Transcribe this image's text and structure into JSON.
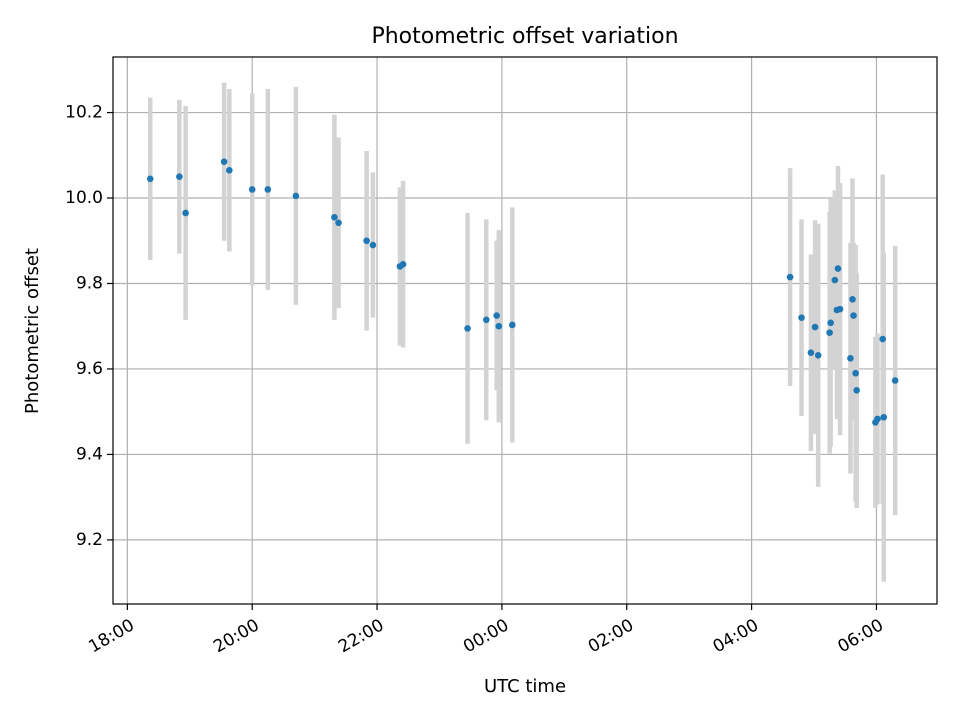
{
  "chart_data": {
    "type": "scatter",
    "title": "Photometric offset variation",
    "xlabel": "UTC time",
    "ylabel": "Photometric offset",
    "x_axis": {
      "kind": "time",
      "range_hours": [
        17.77,
        30.97
      ],
      "ticks": [
        {
          "hour": 18,
          "label": "18:00"
        },
        {
          "hour": 20,
          "label": "20:00"
        },
        {
          "hour": 22,
          "label": "22:00"
        },
        {
          "hour": 24,
          "label": "00:00"
        },
        {
          "hour": 26,
          "label": "02:00"
        },
        {
          "hour": 28,
          "label": "04:00"
        },
        {
          "hour": 30,
          "label": "06:00"
        }
      ]
    },
    "y_axis": {
      "range": [
        9.05,
        10.33
      ],
      "ticks": [
        {
          "value": 9.2,
          "label": "9.2"
        },
        {
          "value": 9.4,
          "label": "9.4"
        },
        {
          "value": 9.6,
          "label": "9.6"
        },
        {
          "value": 9.8,
          "label": "9.8"
        },
        {
          "value": 10.0,
          "label": "10.0"
        },
        {
          "value": 10.2,
          "label": "10.2"
        }
      ]
    },
    "grid": true,
    "colors": {
      "point": "#1f77b4",
      "errorbar": "#d3d3d3"
    },
    "series": [
      {
        "points": [
          {
            "time": "18:22",
            "y": 10.045,
            "err": 0.19
          },
          {
            "time": "18:50",
            "y": 10.05,
            "err": 0.18
          },
          {
            "time": "18:56",
            "y": 9.965,
            "err": 0.25
          },
          {
            "time": "19:33",
            "y": 10.085,
            "err": 0.185
          },
          {
            "time": "19:38",
            "y": 10.065,
            "err": 0.19
          },
          {
            "time": "20:00",
            "y": 10.02,
            "err": 0.225
          },
          {
            "time": "20:15",
            "y": 10.02,
            "err": 0.235
          },
          {
            "time": "20:42",
            "y": 10.005,
            "err": 0.255
          },
          {
            "time": "21:19",
            "y": 9.955,
            "err": 0.24
          },
          {
            "time": "21:23",
            "y": 9.942,
            "err": 0.2
          },
          {
            "time": "21:50",
            "y": 9.9,
            "err": 0.21
          },
          {
            "time": "21:56",
            "y": 9.89,
            "err": 0.17
          },
          {
            "time": "22:22",
            "y": 9.84,
            "err": 0.185
          },
          {
            "time": "22:25",
            "y": 9.845,
            "err": 0.195
          },
          {
            "time": "23:27",
            "y": 9.695,
            "err": 0.27
          },
          {
            "time": "23:45",
            "y": 9.715,
            "err": 0.235
          },
          {
            "time": "23:55",
            "y": 9.725,
            "err": 0.175
          },
          {
            "time": "23:57",
            "y": 9.7,
            "err": 0.225
          },
          {
            "time": "00:10",
            "y": 9.703,
            "err": 0.275
          },
          {
            "time": "04:37",
            "y": 9.815,
            "err": 0.255
          },
          {
            "time": "04:48",
            "y": 9.72,
            "err": 0.23
          },
          {
            "time": "04:57",
            "y": 9.638,
            "err": 0.23
          },
          {
            "time": "05:01",
            "y": 9.698,
            "err": 0.25
          },
          {
            "time": "05:04",
            "y": 9.632,
            "err": 0.308
          },
          {
            "time": "05:15",
            "y": 9.685,
            "err": 0.283
          },
          {
            "time": "05:16",
            "y": 9.708,
            "err": 0.29
          },
          {
            "time": "05:20",
            "y": 9.808,
            "err": 0.21
          },
          {
            "time": "05:22",
            "y": 9.738,
            "err": 0.255
          },
          {
            "time": "05:23",
            "y": 9.835,
            "err": 0.24
          },
          {
            "time": "05:25",
            "y": 9.74,
            "err": 0.295
          },
          {
            "time": "05:35",
            "y": 9.625,
            "err": 0.27
          },
          {
            "time": "05:37",
            "y": 9.763,
            "err": 0.283
          },
          {
            "time": "05:38",
            "y": 9.725,
            "err": 0.17
          },
          {
            "time": "05:40",
            "y": 9.59,
            "err": 0.3
          },
          {
            "time": "05:41",
            "y": 9.55,
            "err": 0.275
          },
          {
            "time": "05:59",
            "y": 9.475,
            "err": 0.2
          },
          {
            "time": "06:01",
            "y": 9.483,
            "err": 0.2
          },
          {
            "time": "06:06",
            "y": 9.67,
            "err": 0.385
          },
          {
            "time": "06:07",
            "y": 9.487,
            "err": 0.385
          },
          {
            "time": "06:18",
            "y": 9.573,
            "err": 0.315
          }
        ]
      }
    ]
  }
}
